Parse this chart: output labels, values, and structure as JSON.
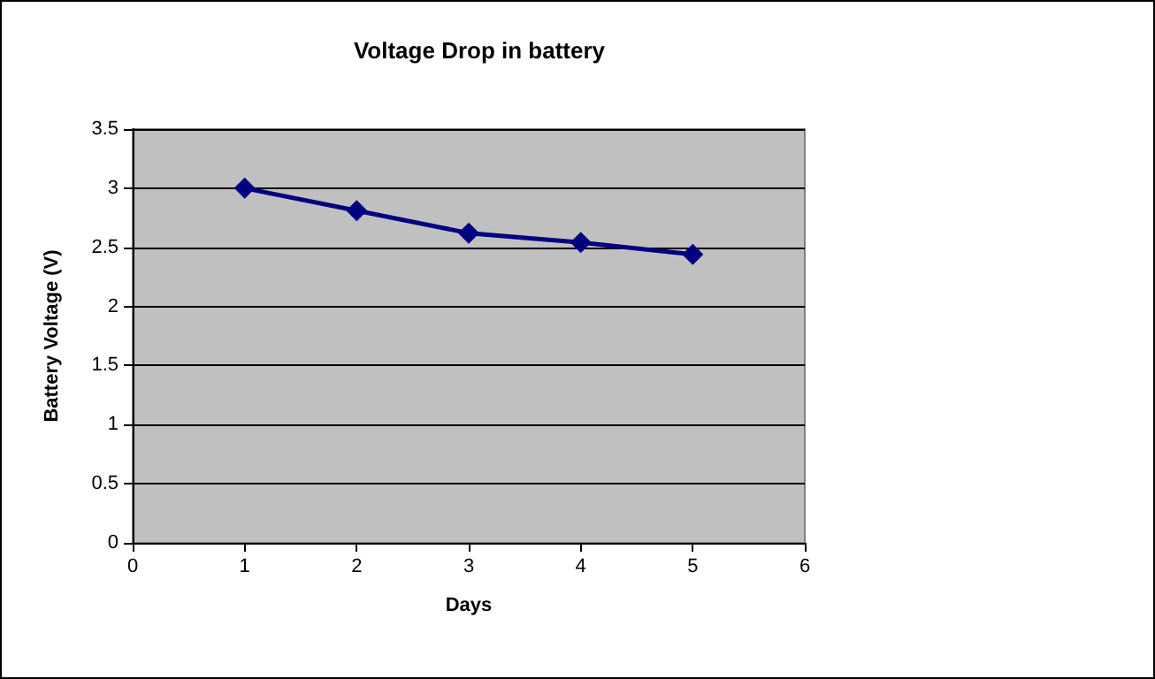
{
  "chart_data": {
    "type": "line",
    "title": "Voltage Drop in battery",
    "xlabel": "Days",
    "ylabel": "Battery Voltage (V)",
    "x": [
      1,
      2,
      3,
      4,
      5
    ],
    "series": [
      {
        "color": "#000080",
        "values": [
          3.0,
          2.81,
          2.62,
          2.54,
          2.44
        ]
      }
    ],
    "xlim": [
      0,
      6
    ],
    "xticks": [
      0,
      1,
      2,
      3,
      4,
      5,
      6
    ],
    "ylim": [
      0,
      3.5
    ],
    "yticks": [
      0,
      0.5,
      1,
      1.5,
      2,
      2.5,
      3,
      3.5
    ],
    "grid": "y",
    "marker": "diamond",
    "line_style": "solid"
  }
}
